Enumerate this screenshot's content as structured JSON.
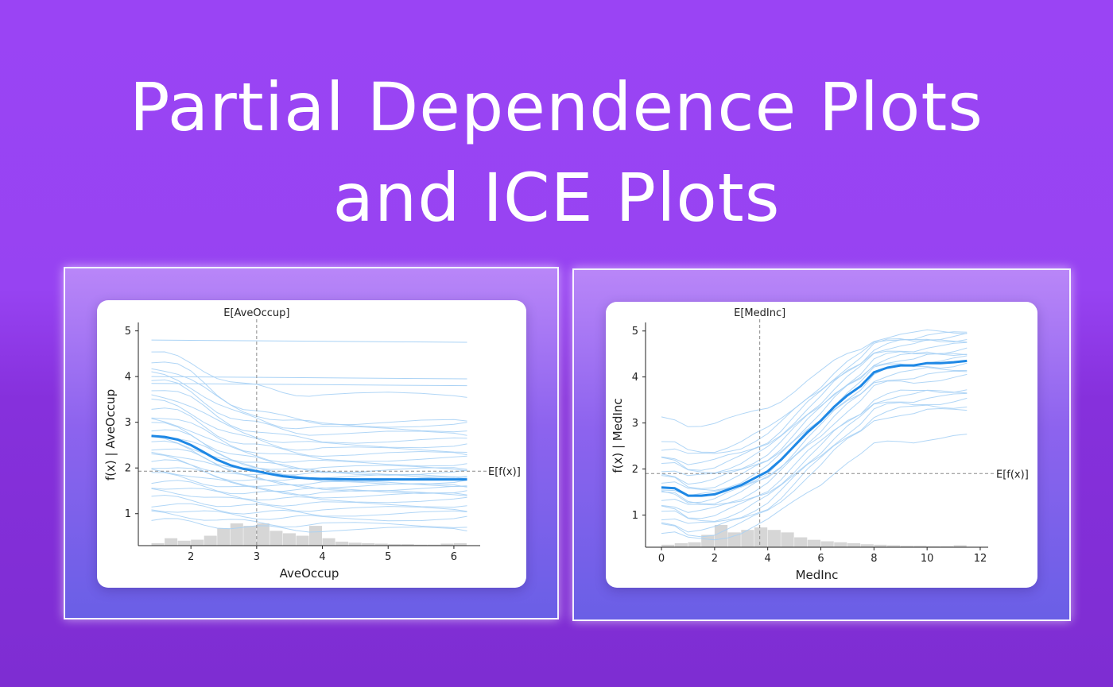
{
  "page": {
    "title_line1": "Partial Dependence Plots",
    "title_line2": "and ICE Plots"
  },
  "colors": {
    "ice_line": "#a9d2f5",
    "pd_line": "#1e88e5",
    "histogram": "#d6d6d6",
    "reference_line": "#8a8a8a"
  },
  "chart_data": [
    {
      "type": "line",
      "title": "",
      "xlabel": "AveOccup",
      "ylabel": "f(x) | AveOccup",
      "xlim": [
        1.2,
        6.4
      ],
      "ylim": [
        0.3,
        5.15
      ],
      "xticks": [
        2,
        3,
        4,
        5,
        6
      ],
      "yticks": [
        1,
        2,
        3,
        4,
        5
      ],
      "expected_x": 3.0,
      "expected_x_label": "E[AveOccup]",
      "expected_y": 1.93,
      "expected_y_label": "E[f(x)]",
      "grid": false,
      "pd_curve": {
        "x": [
          1.4,
          1.6,
          1.8,
          2.0,
          2.2,
          2.4,
          2.6,
          2.8,
          3.0,
          3.2,
          3.4,
          3.6,
          3.8,
          4.0,
          4.5,
          5.0,
          5.5,
          6.0,
          6.2
        ],
        "y": [
          2.7,
          2.68,
          2.62,
          2.5,
          2.34,
          2.18,
          2.06,
          1.98,
          1.93,
          1.87,
          1.82,
          1.79,
          1.77,
          1.76,
          1.75,
          1.75,
          1.75,
          1.75,
          1.75
        ]
      },
      "ice_start_values": [
        0.85,
        1.0,
        1.1,
        1.2,
        1.35,
        1.5,
        1.6,
        1.7,
        1.85,
        1.95,
        2.05,
        2.15,
        2.25,
        2.35,
        2.45,
        2.55,
        2.65,
        2.75,
        2.85,
        2.95,
        3.05,
        3.15,
        3.3,
        3.45,
        3.6,
        3.75,
        3.9,
        4.05,
        4.2,
        4.35,
        4.5
      ],
      "ice_end_values": [
        0.65,
        0.75,
        0.9,
        1.0,
        1.1,
        1.2,
        1.3,
        1.4,
        1.45,
        1.5,
        1.55,
        1.6,
        1.65,
        1.7,
        1.75,
        1.8,
        1.85,
        1.9,
        1.95,
        2.0,
        2.1,
        2.2,
        2.3,
        2.4,
        2.5,
        2.6,
        2.75,
        2.85,
        2.95,
        3.0,
        3.6
      ],
      "ice_flat_lines": [
        {
          "y": 4.8,
          "x_end": 6.2
        },
        {
          "y": 4.0,
          "x_end": 6.2
        },
        {
          "y": 3.85,
          "x_end": 6.2
        }
      ],
      "histogram": {
        "bin_edges": [
          1.4,
          1.6,
          1.8,
          2.0,
          2.2,
          2.4,
          2.6,
          2.8,
          3.0,
          3.2,
          3.4,
          3.6,
          3.8,
          4.0,
          4.2,
          4.4,
          4.6,
          4.8,
          5.0,
          5.2,
          5.4,
          5.6,
          5.8,
          6.0,
          6.2
        ],
        "heights": [
          0.05,
          0.15,
          0.1,
          0.12,
          0.2,
          0.35,
          0.45,
          0.4,
          0.45,
          0.3,
          0.25,
          0.2,
          0.4,
          0.15,
          0.08,
          0.06,
          0.05,
          0.04,
          0.03,
          0.03,
          0.02,
          0.02,
          0.04,
          0.05
        ]
      }
    },
    {
      "type": "line",
      "title": "",
      "xlabel": "MedInc",
      "ylabel": "f(x) | MedInc",
      "xlim": [
        -0.6,
        12.3
      ],
      "ylim": [
        0.3,
        5.15
      ],
      "xticks": [
        0,
        2,
        4,
        6,
        8,
        10,
        12
      ],
      "yticks": [
        1,
        2,
        3,
        4,
        5
      ],
      "expected_x": 3.7,
      "expected_x_label": "E[MedInc]",
      "expected_y": 1.9,
      "expected_y_label": "E[f(x)]",
      "grid": false,
      "pd_curve": {
        "x": [
          0.0,
          0.5,
          1.0,
          1.5,
          2.0,
          2.5,
          3.0,
          3.5,
          4.0,
          4.5,
          5.0,
          5.5,
          6.0,
          6.5,
          7.0,
          7.5,
          8.0,
          8.5,
          9.0,
          9.5,
          10.0,
          10.5,
          11.0,
          11.5
        ],
        "y": [
          1.6,
          1.58,
          1.42,
          1.42,
          1.45,
          1.55,
          1.65,
          1.8,
          1.95,
          2.2,
          2.5,
          2.8,
          3.05,
          3.35,
          3.6,
          3.8,
          4.1,
          4.2,
          4.25,
          4.25,
          4.3,
          4.3,
          4.32,
          4.35
        ]
      },
      "ice_start_values": [
        0.6,
        0.75,
        0.85,
        0.95,
        1.05,
        1.15,
        1.25,
        1.35,
        1.45,
        1.5,
        1.6,
        1.7,
        1.8,
        1.9,
        2.0,
        2.1,
        2.2,
        2.3,
        2.45,
        2.55,
        3.1
      ],
      "ice_end_values": [
        2.7,
        3.3,
        3.4,
        3.5,
        3.6,
        3.7,
        3.75,
        4.0,
        4.1,
        4.2,
        4.3,
        4.4,
        4.5,
        4.55,
        4.6,
        4.7,
        4.8,
        4.85,
        4.9,
        4.95,
        5.0
      ],
      "ice_flat_lines": [],
      "histogram": {
        "bin_edges": [
          0.0,
          0.5,
          1.0,
          1.5,
          2.0,
          2.5,
          3.0,
          3.5,
          4.0,
          4.5,
          5.0,
          5.5,
          6.0,
          6.5,
          7.0,
          7.5,
          8.0,
          8.5,
          9.0,
          9.5,
          10.0,
          10.5,
          11.0,
          11.5
        ],
        "heights": [
          0.05,
          0.08,
          0.1,
          0.25,
          0.45,
          0.3,
          0.35,
          0.4,
          0.35,
          0.3,
          0.2,
          0.15,
          0.12,
          0.1,
          0.08,
          0.06,
          0.05,
          0.04,
          0.03,
          0.03,
          0.02,
          0.02,
          0.04
        ]
      }
    }
  ]
}
